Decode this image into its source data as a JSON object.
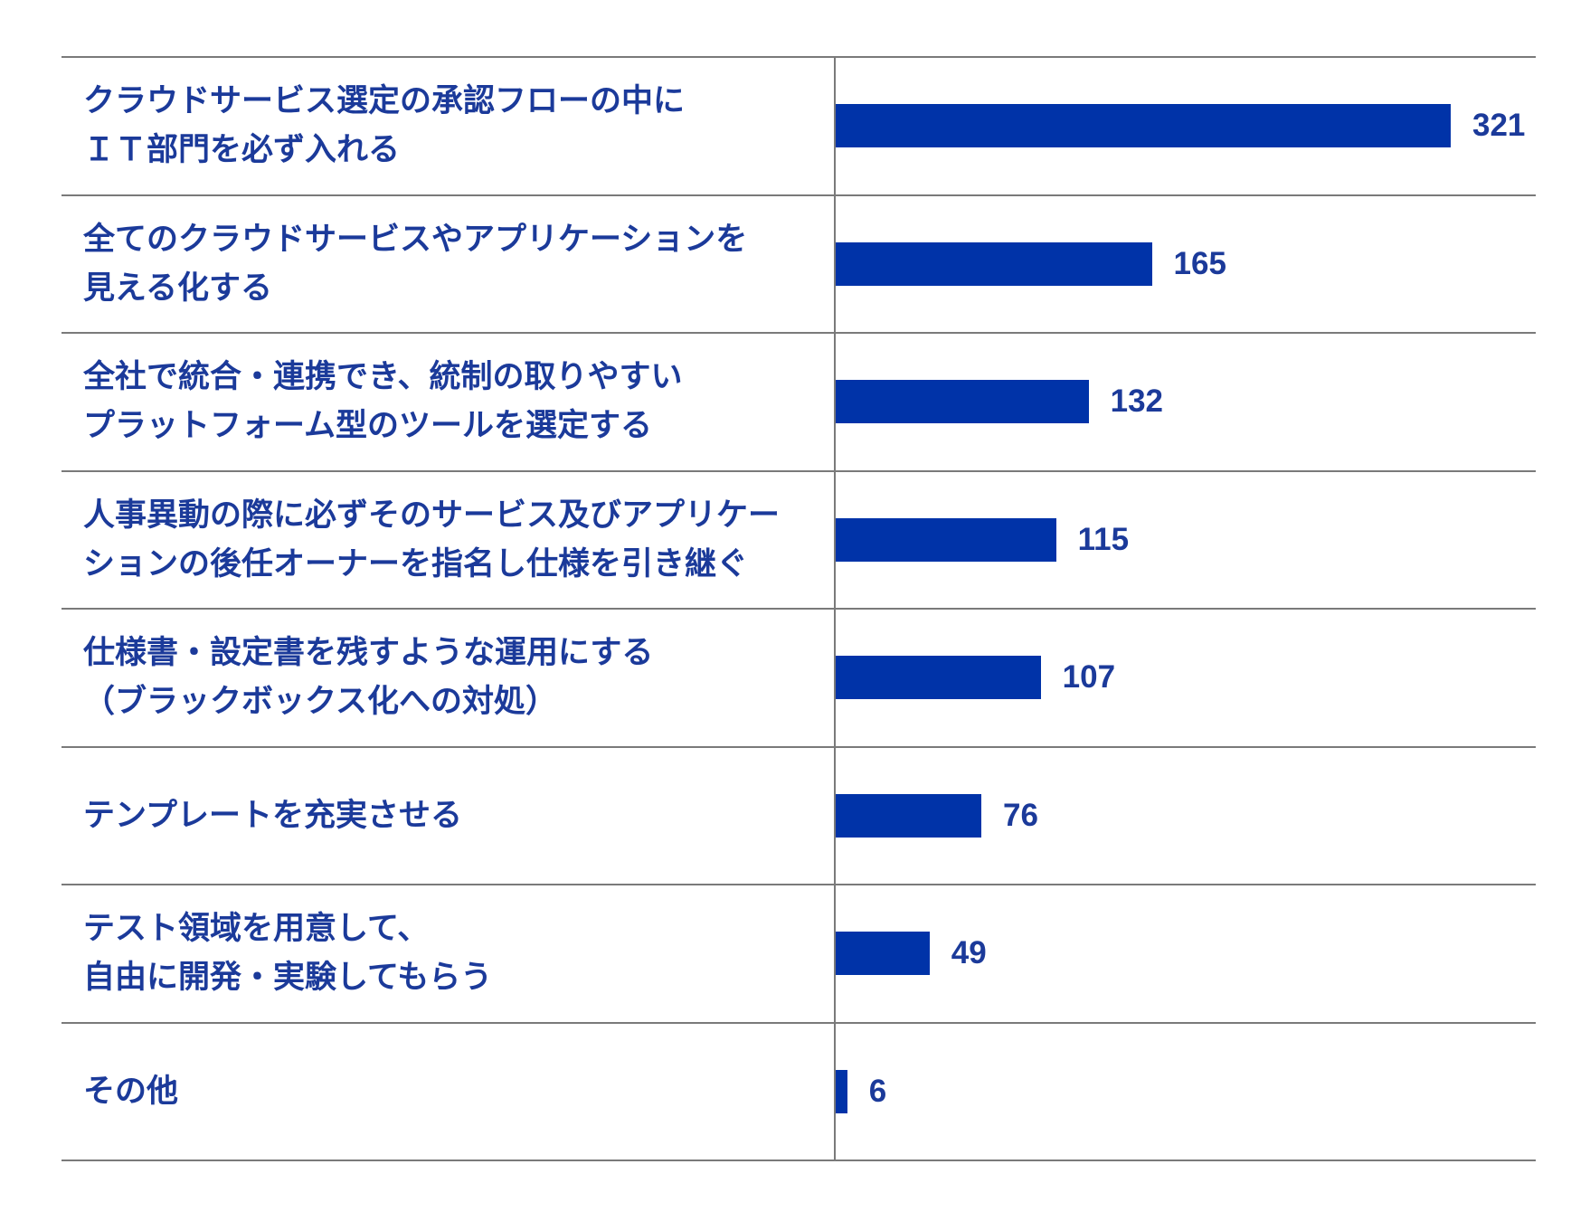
{
  "chart_data": {
    "type": "bar",
    "orientation": "horizontal",
    "categories": [
      "クラウドサービス選定の承認フローの中に\nＩＴ部門を必ず入れる",
      "全てのクラウドサービスやアプリケーションを\n見える化する",
      "全社で統合・連携でき、統制の取りやすい\nプラットフォーム型のツールを選定する",
      "人事異動の際に必ずそのサービス及びアプリケー\nションの後任オーナーを指名し仕様を引き継ぐ",
      "仕様書・設定書を残すような運用にする\n（ブラックボックス化への対処）",
      "テンプレートを充実させる",
      "テスト領域を用意して、\n自由に開発・実験してもらう",
      "その他"
    ],
    "values": [
      321,
      165,
      132,
      115,
      107,
      76,
      49,
      6
    ],
    "data_labels": [
      "321",
      "165",
      "132",
      "115",
      "107",
      "76",
      "49",
      "6"
    ],
    "xlim": [
      0,
      321
    ],
    "bar_color": "#0033a8",
    "label_color": "#1b3a9a",
    "grid": false,
    "legend": "none"
  }
}
